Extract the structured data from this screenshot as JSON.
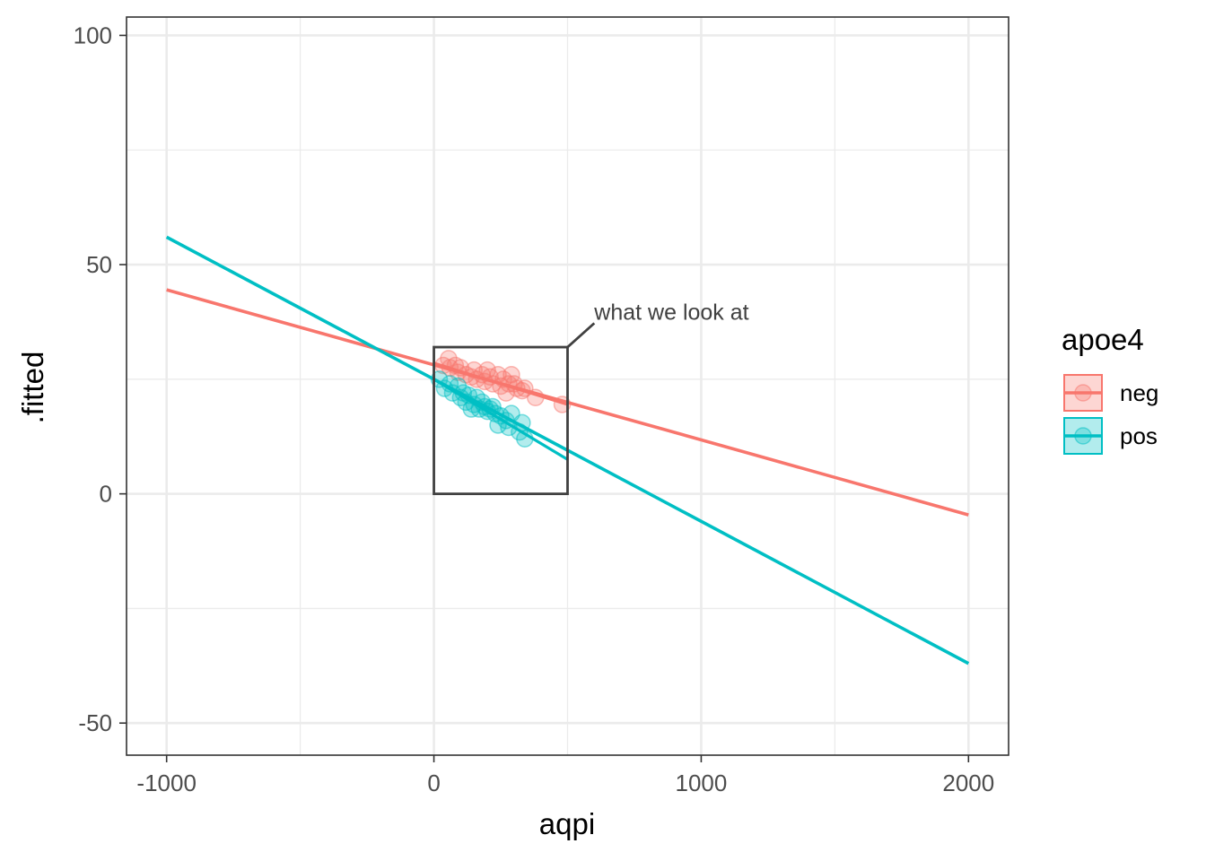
{
  "chart_data": {
    "type": "scatter",
    "xlabel": "aqpi",
    "ylabel": ".fitted",
    "xlim": [
      -1150,
      2150
    ],
    "ylim": [
      -57,
      104
    ],
    "x_ticks": [
      -1000,
      0,
      1000,
      2000
    ],
    "x_minor": [
      -500,
      500,
      1500
    ],
    "y_ticks": [
      -50,
      0,
      50,
      100
    ],
    "y_minor": [
      -25,
      25,
      75
    ],
    "x_tick_labels": [
      "-1000",
      "0",
      "1000",
      "2000"
    ],
    "y_tick_labels": [
      "-50",
      "0",
      "50",
      "100"
    ],
    "grid": true,
    "legend": {
      "title": "apoe4",
      "placement": "right",
      "entries": [
        {
          "label": "neg",
          "color": "#F8766D"
        },
        {
          "label": "pos",
          "color": "#00BFC4"
        }
      ]
    },
    "series": [
      {
        "name": "neg",
        "color": "#F8766D",
        "fit_line": {
          "x": [
            -1000,
            2000
          ],
          "y": [
            44.5,
            -4.6
          ]
        },
        "local_line": {
          "x": [
            0,
            500
          ],
          "y": [
            28.5,
            19.5
          ]
        },
        "points": [
          [
            35,
            28
          ],
          [
            55,
            29.5
          ],
          [
            60,
            27.5
          ],
          [
            80,
            28
          ],
          [
            90,
            26.5
          ],
          [
            100,
            27.5
          ],
          [
            120,
            26
          ],
          [
            140,
            25.5
          ],
          [
            150,
            27
          ],
          [
            160,
            25
          ],
          [
            180,
            26
          ],
          [
            190,
            24.5
          ],
          [
            200,
            27
          ],
          [
            210,
            25.5
          ],
          [
            220,
            24
          ],
          [
            240,
            26
          ],
          [
            250,
            23.5
          ],
          [
            260,
            25
          ],
          [
            270,
            22
          ],
          [
            280,
            24
          ],
          [
            290,
            26
          ],
          [
            300,
            24
          ],
          [
            310,
            23
          ],
          [
            330,
            22.5
          ],
          [
            340,
            23
          ],
          [
            380,
            21
          ],
          [
            480,
            19.5
          ]
        ]
      },
      {
        "name": "pos",
        "color": "#00BFC4",
        "fit_line": {
          "x": [
            -1000,
            2000
          ],
          "y": [
            56,
            -37
          ]
        },
        "local_line": {
          "x": [
            0,
            500
          ],
          "y": [
            25,
            7.5
          ]
        },
        "points": [
          [
            20,
            25
          ],
          [
            40,
            23
          ],
          [
            60,
            24
          ],
          [
            70,
            22
          ],
          [
            90,
            23.5
          ],
          [
            100,
            21
          ],
          [
            110,
            22
          ],
          [
            120,
            20
          ],
          [
            130,
            21.5
          ],
          [
            140,
            18.5
          ],
          [
            150,
            19.5
          ],
          [
            160,
            21
          ],
          [
            170,
            18.5
          ],
          [
            180,
            20
          ],
          [
            190,
            19
          ],
          [
            200,
            18
          ],
          [
            210,
            18.5
          ],
          [
            220,
            19
          ],
          [
            230,
            17.5
          ],
          [
            240,
            15
          ],
          [
            250,
            17
          ],
          [
            270,
            16
          ],
          [
            280,
            14.5
          ],
          [
            290,
            17.5
          ],
          [
            320,
            13.5
          ],
          [
            330,
            15.5
          ],
          [
            340,
            12
          ]
        ]
      }
    ],
    "annotation": {
      "text": "what we look at",
      "box": {
        "x": [
          0,
          500
        ],
        "y": [
          0,
          32
        ]
      },
      "label_at": {
        "x": 600,
        "y": 38
      }
    }
  }
}
